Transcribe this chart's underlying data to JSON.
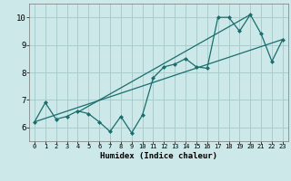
{
  "background_color": "#cce8e8",
  "grid_color": "#aacccc",
  "line_color": "#1a6e6e",
  "marker_color": "#1a6e6e",
  "xlabel": "Humidex (Indice chaleur)",
  "xlim": [
    -0.5,
    23.5
  ],
  "ylim": [
    5.5,
    10.5
  ],
  "xticks": [
    0,
    1,
    2,
    3,
    4,
    5,
    6,
    7,
    8,
    9,
    10,
    11,
    12,
    13,
    14,
    15,
    16,
    17,
    18,
    19,
    20,
    21,
    22,
    23
  ],
  "yticks": [
    6,
    7,
    8,
    9,
    10
  ],
  "series": [
    [
      0,
      6.2
    ],
    [
      1,
      6.9
    ],
    [
      2,
      6.3
    ],
    [
      3,
      6.4
    ],
    [
      4,
      6.6
    ],
    [
      5,
      6.5
    ],
    [
      6,
      6.2
    ],
    [
      7,
      5.85
    ],
    [
      8,
      6.4
    ],
    [
      9,
      5.8
    ],
    [
      10,
      6.45
    ],
    [
      11,
      7.8
    ],
    [
      12,
      8.2
    ],
    [
      13,
      8.3
    ],
    [
      14,
      8.5
    ],
    [
      15,
      8.2
    ],
    [
      16,
      8.15
    ],
    [
      17,
      10.0
    ],
    [
      18,
      10.0
    ],
    [
      19,
      9.5
    ],
    [
      20,
      10.1
    ],
    [
      21,
      9.4
    ],
    [
      22,
      8.4
    ],
    [
      23,
      9.2
    ]
  ],
  "line1": [
    [
      0,
      6.2
    ],
    [
      23,
      9.2
    ]
  ],
  "line2": [
    [
      4,
      6.55
    ],
    [
      20,
      10.1
    ]
  ]
}
